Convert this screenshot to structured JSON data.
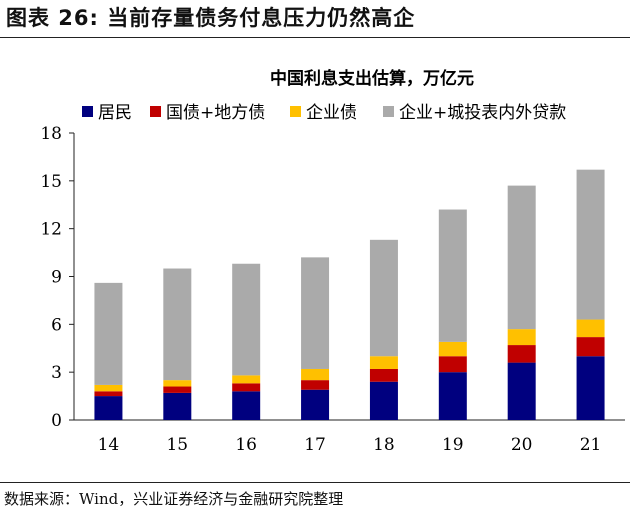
{
  "figure": {
    "title": "图表 26:  当前存量债务付息压力仍然高企",
    "source": "数据来源：Wind，兴业证券经济与金融研究院整理"
  },
  "chart_data": {
    "type": "bar",
    "stacked": true,
    "title": "中国利息支出估算，万亿元",
    "categories": [
      "14",
      "15",
      "16",
      "17",
      "18",
      "19",
      "20",
      "21"
    ],
    "ylim": [
      0,
      18
    ],
    "yticks": [
      0,
      3,
      6,
      9,
      12,
      15,
      18
    ],
    "legend_position": "top",
    "series": [
      {
        "name": "居民",
        "color": "#00007f",
        "values": [
          1.5,
          1.7,
          1.8,
          1.9,
          2.4,
          3.0,
          3.6,
          4.0
        ]
      },
      {
        "name": "国债+地方债",
        "color": "#c00000",
        "values": [
          0.3,
          0.4,
          0.5,
          0.6,
          0.8,
          1.0,
          1.1,
          1.2
        ]
      },
      {
        "name": "企业债",
        "color": "#ffc000",
        "values": [
          0.4,
          0.4,
          0.5,
          0.7,
          0.8,
          0.9,
          1.0,
          1.1
        ]
      },
      {
        "name": "企业+城投表内外贷款",
        "color": "#aaaaaa",
        "values": [
          6.4,
          7.0,
          7.0,
          7.0,
          7.3,
          8.3,
          9.0,
          9.4
        ]
      }
    ]
  }
}
